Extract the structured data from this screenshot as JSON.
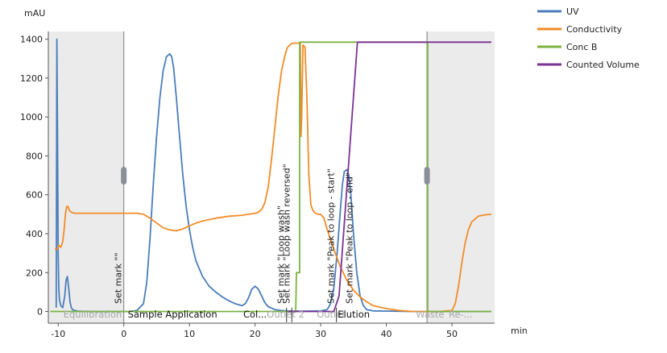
{
  "chart_data": {
    "type": "line",
    "ylabel": "mAU",
    "xlabel": "min",
    "xlim": [
      -11.5,
      56.5
    ],
    "ylim": [
      -60,
      1440
    ],
    "x_ticks": [
      -10,
      0,
      10,
      20,
      30,
      40,
      50
    ],
    "y_ticks": [
      0,
      200,
      400,
      600,
      800,
      1000,
      1200,
      1400
    ],
    "grid": false,
    "legend_position": "top-right",
    "shaded_regions": [
      {
        "x0": -11.5,
        "x1": 0
      },
      {
        "x0": 46.2,
        "x1": 56.5
      }
    ],
    "boundary_lines": [
      0,
      46.2
    ],
    "series": [
      {
        "name": "UV",
        "color": "#4a7ebb",
        "x": [
          -10.3,
          -10.2,
          -10.1,
          -10.0,
          -9.9,
          -9.8,
          -9.6,
          -9.3,
          -9.0,
          -8.8,
          -8.6,
          -8.4,
          -8.2,
          -8.0,
          -7.8,
          -7.5,
          -7.0,
          -6.0,
          -4.0,
          -2.0,
          0.0,
          1.0,
          2.0,
          3.0,
          3.5,
          4.0,
          4.5,
          5.0,
          5.5,
          6.0,
          6.5,
          7.0,
          7.3,
          7.6,
          8.0,
          8.5,
          9.0,
          9.5,
          10.0,
          10.5,
          11.0,
          12.0,
          13.0,
          14.0,
          15.0,
          16.0,
          17.0,
          18.0,
          18.5,
          19.0,
          19.5,
          20.0,
          20.5,
          21.0,
          21.5,
          22.0,
          23.0,
          24.0,
          25.0,
          26.0,
          27.0,
          28.0,
          30.0,
          31.0,
          31.5,
          32.0,
          32.5,
          33.0,
          33.3,
          33.6,
          34.0,
          34.3,
          34.6,
          35.0,
          35.5,
          36.0,
          36.5,
          37.0,
          38.0,
          40.0,
          44.0,
          48.0,
          52.0,
          56.0
        ],
        "y": [
          20,
          1400,
          900,
          300,
          120,
          60,
          30,
          20,
          80,
          160,
          180,
          120,
          50,
          20,
          10,
          5,
          2,
          0,
          0,
          0,
          0,
          0,
          5,
          40,
          150,
          380,
          660,
          900,
          1100,
          1240,
          1310,
          1325,
          1310,
          1250,
          1100,
          900,
          700,
          540,
          420,
          330,
          260,
          180,
          130,
          100,
          75,
          55,
          40,
          30,
          40,
          70,
          115,
          130,
          115,
          80,
          45,
          25,
          10,
          5,
          3,
          2,
          2,
          2,
          3,
          10,
          40,
          120,
          300,
          520,
          650,
          720,
          730,
          700,
          600,
          400,
          200,
          80,
          30,
          10,
          3,
          2,
          0,
          0,
          0,
          0
        ]
      },
      {
        "name": "Conductivity",
        "color": "#f28c28",
        "x": [
          -10.5,
          -10.1,
          -9.9,
          -9.6,
          -9.3,
          -9.1,
          -8.9,
          -8.7,
          -8.5,
          -8.3,
          -8.0,
          -7.5,
          -6.0,
          -4.0,
          -2.0,
          0.0,
          2.0,
          3.0,
          4.0,
          5.0,
          6.0,
          7.0,
          8.0,
          9.0,
          10.0,
          11.0,
          12.0,
          14.0,
          16.0,
          18.0,
          19.0,
          20.0,
          20.5,
          21.0,
          21.5,
          22.0,
          22.5,
          23.0,
          23.5,
          24.0,
          24.5,
          24.8,
          25.0,
          25.3,
          25.6,
          26.0,
          26.5,
          26.9,
          27.0,
          27.1,
          27.3,
          27.6,
          27.9,
          28.2,
          28.5,
          28.8,
          29.2,
          29.6,
          30.0,
          30.5,
          31.0,
          32.0,
          33.0,
          34.0,
          35.0,
          36.0,
          37.0,
          38.0,
          40.0,
          42.0,
          44.0,
          46.0,
          48.0,
          50.0,
          50.5,
          51.0,
          51.5,
          52.0,
          52.5,
          53.0,
          54.0,
          55.0,
          56.0
        ],
        "y": [
          320,
          320,
          340,
          330,
          360,
          420,
          500,
          540,
          540,
          520,
          510,
          505,
          505,
          505,
          505,
          505,
          505,
          500,
          480,
          455,
          430,
          420,
          415,
          425,
          440,
          455,
          465,
          480,
          490,
          495,
          500,
          505,
          510,
          525,
          560,
          640,
          780,
          940,
          1100,
          1230,
          1310,
          1345,
          1360,
          1370,
          1378,
          1380,
          1380,
          1382,
          900,
          1000,
          1370,
          1360,
          1100,
          700,
          550,
          520,
          505,
          500,
          500,
          480,
          420,
          320,
          230,
          160,
          110,
          75,
          50,
          30,
          15,
          5,
          0,
          0,
          0,
          5,
          40,
          130,
          250,
          350,
          420,
          460,
          490,
          497,
          500
        ]
      },
      {
        "name": "Conc B",
        "color": "#7cb342",
        "x": [
          -11.2,
          26.2,
          26.3,
          26.8,
          26.8,
          46.3,
          46.3,
          56.0
        ],
        "y": [
          0,
          0,
          200,
          200,
          1385,
          1385,
          0,
          0
        ]
      },
      {
        "name": "Counted Volume",
        "color": "#7b3294",
        "x": [
          25.0,
          32.0,
          32.8,
          35.6,
          46.2,
          56.0
        ],
        "y": [
          0,
          0,
          80,
          1385,
          1385,
          1385
        ]
      }
    ],
    "phases": [
      {
        "label": "Equilibration",
        "x": -9.2,
        "active": false
      },
      {
        "label": "Sample Application",
        "x": 0.6,
        "active": true
      },
      {
        "label": "Col...",
        "x": 18.2,
        "active": true
      },
      {
        "label": "Outlet 2",
        "x": 21.8,
        "active": false
      },
      {
        "label": "Outlet",
        "x": 29.4,
        "active": false
      },
      {
        "label": "Elution",
        "x": 32.6,
        "active": true
      },
      {
        "label": "Waste",
        "x": 44.5,
        "active": false
      },
      {
        "label": "Re-...",
        "x": 49.5,
        "active": false
      }
    ],
    "marks": [
      {
        "label": "Set mark \"\"",
        "x": 0.0,
        "y_text_start": 40
      },
      {
        "label": "Set mark \"Loop wash\"",
        "x": 24.8,
        "y_text_start": 40
      },
      {
        "label": "Set mark \"Loop wash reversed\"",
        "x": 25.6,
        "y_text_start": 40
      },
      {
        "label": "Set mark \"Peak to loop - start\"",
        "x": 32.4,
        "y_text_start": 40
      },
      {
        "label": "Set mark \"Peak to loop - end\"",
        "x": 35.2,
        "y_text_start": 40
      }
    ],
    "mark_lines": [
      24.8,
      25.6,
      32.4
    ],
    "handles": [
      0.0,
      46.2
    ],
    "axis_color": "#555555",
    "shade_color": "#ebebeb",
    "phase_inactive_color": "#a8a8a8",
    "phase_active_color": "#111111"
  }
}
